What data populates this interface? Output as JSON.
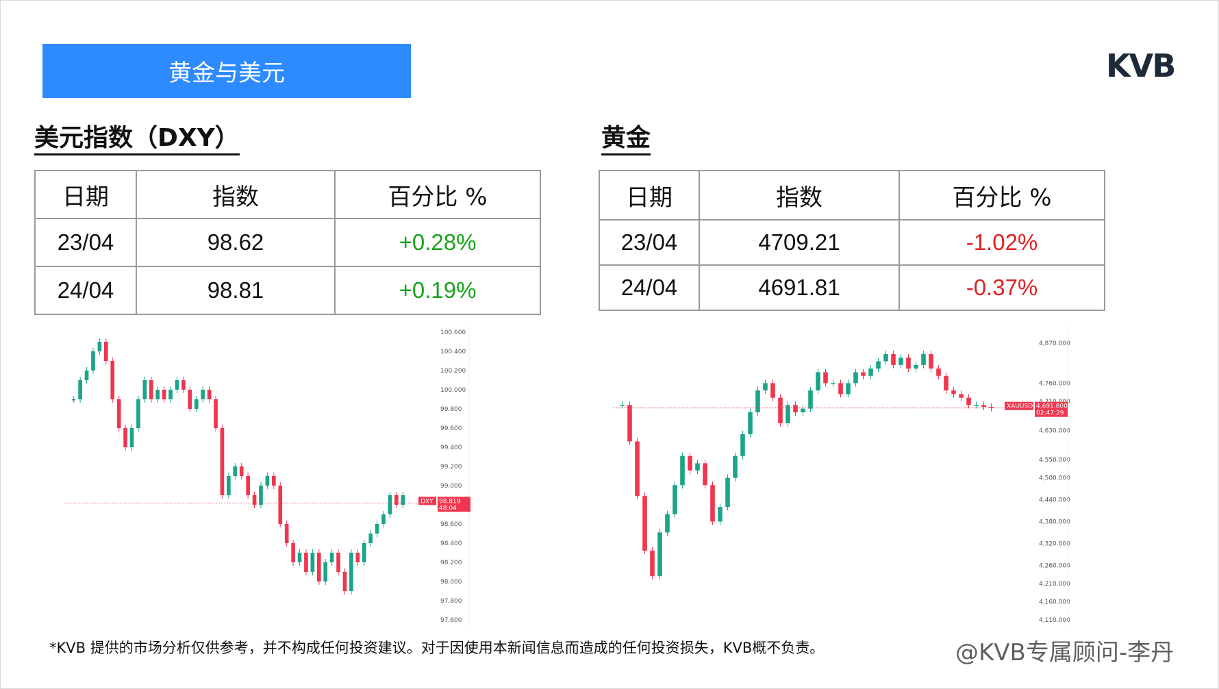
{
  "banner": {
    "title": "黄金与美元"
  },
  "logo": {
    "text": "KVB"
  },
  "dxy": {
    "title": "美元指数（DXY）",
    "headers": [
      "日期",
      "指数",
      "百分比 %"
    ],
    "rows": [
      {
        "date": "23/04",
        "value": "98.62",
        "pct": "+0.28%"
      },
      {
        "date": "24/04",
        "value": "98.81",
        "pct": "+0.19%"
      }
    ]
  },
  "gold": {
    "title": "黄金",
    "headers": [
      "日期",
      "指数",
      "百分比 %"
    ],
    "rows": [
      {
        "date": "23/04",
        "value": "4709.21",
        "pct": "-1.02%"
      },
      {
        "date": "24/04",
        "value": "4691.81",
        "pct": "-0.37%"
      }
    ]
  },
  "colors": {
    "banner": "#2e8bff",
    "up": "#19a319",
    "down": "#e02020",
    "candle_up": "#1aa58a",
    "candle_down": "#f0364e"
  },
  "chart_data": [
    {
      "type": "candlestick",
      "symbol": "DXY",
      "last_price": "98.819",
      "countdown": "48:04",
      "y_ticks": [
        "100.600",
        "100.400",
        "100.200",
        "100.000",
        "99.800",
        "99.600",
        "99.400",
        "99.200",
        "99.000",
        "98.600",
        "98.400",
        "98.200",
        "98.000",
        "97.800",
        "97.600"
      ],
      "ylim": [
        97.6,
        100.6
      ],
      "close_series": [
        99.9,
        100.1,
        100.2,
        100.4,
        100.5,
        100.3,
        99.9,
        99.6,
        99.4,
        99.6,
        99.9,
        100.1,
        99.9,
        100.0,
        99.9,
        100.0,
        100.1,
        100.0,
        99.8,
        99.9,
        100.0,
        99.9,
        99.6,
        98.9,
        99.1,
        99.2,
        99.1,
        98.9,
        98.8,
        99.0,
        99.1,
        99.0,
        98.6,
        98.4,
        98.2,
        98.3,
        98.1,
        98.3,
        98.0,
        98.2,
        98.3,
        98.1,
        97.9,
        98.3,
        98.2,
        98.4,
        98.5,
        98.6,
        98.7,
        98.9,
        98.8,
        98.9
      ]
    },
    {
      "type": "candlestick",
      "symbol": "XAUUSD",
      "last_price": "4,691.800",
      "countdown": "02:47:29",
      "y_ticks": [
        "4,870.000",
        "4,760.000",
        "4,710.000",
        "4,630.000",
        "4,550.000",
        "4,500.000",
        "4,440.000",
        "4,380.000",
        "4,320.000",
        "4,260.000",
        "4,210.000",
        "4,160.000",
        "4,110.000"
      ],
      "ylim": [
        4110,
        4900
      ],
      "close_series": [
        4700,
        4600,
        4450,
        4300,
        4230,
        4350,
        4400,
        4480,
        4560,
        4520,
        4540,
        4480,
        4380,
        4420,
        4500,
        4560,
        4620,
        4680,
        4740,
        4760,
        4720,
        4650,
        4700,
        4680,
        4690,
        4740,
        4790,
        4760,
        4760,
        4730,
        4760,
        4790,
        4780,
        4800,
        4820,
        4840,
        4810,
        4830,
        4800,
        4810,
        4840,
        4800,
        4780,
        4740,
        4730,
        4720,
        4700,
        4700,
        4695,
        4692
      ]
    }
  ],
  "disclaimer": "*KVB 提供的市场分析仅供参考，并不构成任何投资建议。对于因使用本新闻信息而造成的任何投资损失，KVB概不负责。",
  "watermark": "@KVB专属顾问-李丹"
}
